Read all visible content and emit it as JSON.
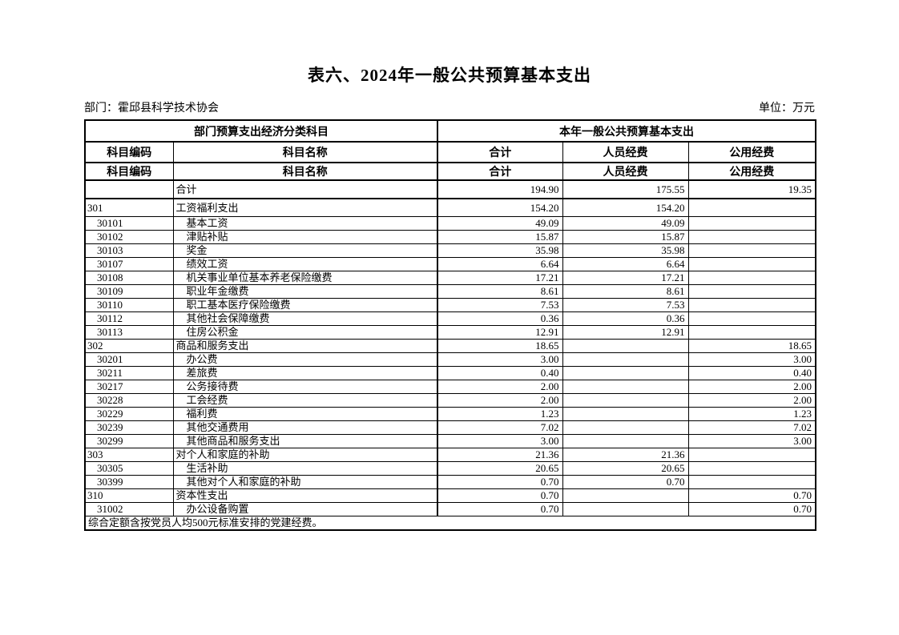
{
  "page": {
    "title": "表六、2024年一般公共预算基本支出",
    "department": "部门：霍邱县科学技术协会",
    "unit": "单位：万元"
  },
  "table": {
    "header": {
      "group_left": "部门预算支出经济分类科目",
      "group_right": "本年一般公共预算基本支出",
      "columns": [
        "科目编码",
        "科目名称",
        "合计",
        "人员经费",
        "公用经费"
      ]
    },
    "rows": [
      {
        "code": "",
        "name": "合计",
        "total": "194.90",
        "personnel": "175.55",
        "public": "19.35",
        "level": 0,
        "kind": "grand-total"
      },
      {
        "code": "301",
        "name": "工资福利支出",
        "total": "154.20",
        "personnel": "154.20",
        "public": "",
        "level": 0,
        "kind": "section"
      },
      {
        "code": "30101",
        "name": "基本工资",
        "total": "49.09",
        "personnel": "49.09",
        "public": "",
        "level": 1,
        "kind": "item"
      },
      {
        "code": "30102",
        "name": "津贴补贴",
        "total": "15.87",
        "personnel": "15.87",
        "public": "",
        "level": 1,
        "kind": "item"
      },
      {
        "code": "30103",
        "name": "奖金",
        "total": "35.98",
        "personnel": "35.98",
        "public": "",
        "level": 1,
        "kind": "item"
      },
      {
        "code": "30107",
        "name": "绩效工资",
        "total": "6.64",
        "personnel": "6.64",
        "public": "",
        "level": 1,
        "kind": "item"
      },
      {
        "code": "30108",
        "name": "机关事业单位基本养老保险缴费",
        "total": "17.21",
        "personnel": "17.21",
        "public": "",
        "level": 1,
        "kind": "item"
      },
      {
        "code": "30109",
        "name": "职业年金缴费",
        "total": "8.61",
        "personnel": "8.61",
        "public": "",
        "level": 1,
        "kind": "item"
      },
      {
        "code": "30110",
        "name": "职工基本医疗保险缴费",
        "total": "7.53",
        "personnel": "7.53",
        "public": "",
        "level": 1,
        "kind": "item"
      },
      {
        "code": "30112",
        "name": "其他社会保障缴费",
        "total": "0.36",
        "personnel": "0.36",
        "public": "",
        "level": 1,
        "kind": "item"
      },
      {
        "code": "30113",
        "name": "住房公积金",
        "total": "12.91",
        "personnel": "12.91",
        "public": "",
        "level": 1,
        "kind": "item"
      },
      {
        "code": "302",
        "name": "商品和服务支出",
        "total": "18.65",
        "personnel": "",
        "public": "18.65",
        "level": 0,
        "kind": "section"
      },
      {
        "code": "30201",
        "name": "办公费",
        "total": "3.00",
        "personnel": "",
        "public": "3.00",
        "level": 1,
        "kind": "item"
      },
      {
        "code": "30211",
        "name": "差旅费",
        "total": "0.40",
        "personnel": "",
        "public": "0.40",
        "level": 1,
        "kind": "item"
      },
      {
        "code": "30217",
        "name": "公务接待费",
        "total": "2.00",
        "personnel": "",
        "public": "2.00",
        "level": 1,
        "kind": "item"
      },
      {
        "code": "30228",
        "name": "工会经费",
        "total": "2.00",
        "personnel": "",
        "public": "2.00",
        "level": 1,
        "kind": "item"
      },
      {
        "code": "30229",
        "name": "福利费",
        "total": "1.23",
        "personnel": "",
        "public": "1.23",
        "level": 1,
        "kind": "item"
      },
      {
        "code": "30239",
        "name": "其他交通费用",
        "total": "7.02",
        "personnel": "",
        "public": "7.02",
        "level": 1,
        "kind": "item"
      },
      {
        "code": "30299",
        "name": "其他商品和服务支出",
        "total": "3.00",
        "personnel": "",
        "public": "3.00",
        "level": 1,
        "kind": "item"
      },
      {
        "code": "303",
        "name": "对个人和家庭的补助",
        "total": "21.36",
        "personnel": "21.36",
        "public": "",
        "level": 0,
        "kind": "section"
      },
      {
        "code": "30305",
        "name": "生活补助",
        "total": "20.65",
        "personnel": "20.65",
        "public": "",
        "level": 1,
        "kind": "item"
      },
      {
        "code": "30399",
        "name": "其他对个人和家庭的补助",
        "total": "0.70",
        "personnel": "0.70",
        "public": "",
        "level": 1,
        "kind": "item"
      },
      {
        "code": "310",
        "name": "资本性支出",
        "total": "0.70",
        "personnel": "",
        "public": "0.70",
        "level": 0,
        "kind": "section"
      },
      {
        "code": "31002",
        "name": "办公设备购置",
        "total": "0.70",
        "personnel": "",
        "public": "0.70",
        "level": 1,
        "kind": "item"
      }
    ],
    "footnote": "综合定额含按党员人均500元标准安排的党建经费。"
  }
}
